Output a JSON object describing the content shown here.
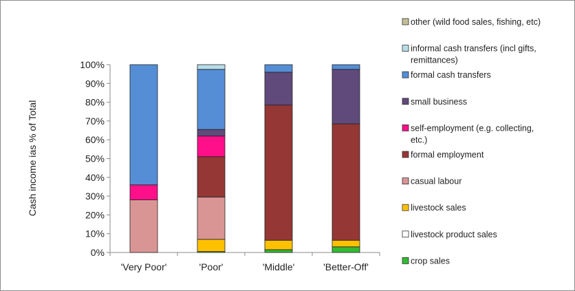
{
  "chart_data": {
    "type": "bar",
    "stacked": true,
    "ylabel": "Cash income ias % of Total",
    "ylim": [
      0,
      100
    ],
    "yticks": [
      "0%",
      "10%",
      "20%",
      "30%",
      "40%",
      "50%",
      "60%",
      "70%",
      "80%",
      "90%",
      "100%"
    ],
    "categories": [
      "'Very Poor'",
      "'Poor'",
      "'Middle'",
      "'Better-Off'"
    ],
    "legend_position": "right",
    "series": [
      {
        "name": "crop sales",
        "color": "#33bb33",
        "values": [
          0,
          0.5,
          1.5,
          3
        ]
      },
      {
        "name": "livestock product sales",
        "color": "#ffffff",
        "values": [
          0,
          0,
          0,
          0
        ]
      },
      {
        "name": "livestock sales",
        "color": "#ffc000",
        "values": [
          0,
          6.5,
          5,
          3.5
        ]
      },
      {
        "name": "casual labour",
        "color": "#d99594",
        "values": [
          28,
          22.5,
          0,
          0
        ]
      },
      {
        "name": "formal employment",
        "color": "#953735",
        "values": [
          0,
          21.5,
          72,
          62
        ]
      },
      {
        "name": "self-employment (e.g. collecting, etc.)",
        "color": "#ff0f8a",
        "values": [
          8,
          11,
          0,
          0
        ]
      },
      {
        "name": "small business",
        "color": "#604a7b",
        "values": [
          0,
          3.5,
          17.5,
          29
        ]
      },
      {
        "name": "formal cash transfers",
        "color": "#558ed5",
        "values": [
          64,
          32,
          4,
          2.5
        ]
      },
      {
        "name": "informal cash transfers (incl gifts, remittances)",
        "color": "#b7dee8",
        "values": [
          0,
          2.5,
          0,
          0
        ]
      },
      {
        "name": "other (wild food sales, fishing, etc)",
        "color": "#c4bd97",
        "values": [
          0,
          0,
          0,
          0
        ]
      }
    ],
    "legend_order": [
      [
        "other (wild food sales, fishing, etc)"
      ],
      [
        "informal cash transfers (incl gifts,",
        "remittances)"
      ],
      [
        "formal cash transfers"
      ],
      [
        "small business"
      ],
      [
        "self-employment (e.g. collecting,",
        "etc.)"
      ],
      [
        "formal employment"
      ],
      [
        "casual labour"
      ],
      [
        "livestock sales"
      ],
      [
        "livestock product sales"
      ],
      [
        "crop sales"
      ]
    ]
  }
}
